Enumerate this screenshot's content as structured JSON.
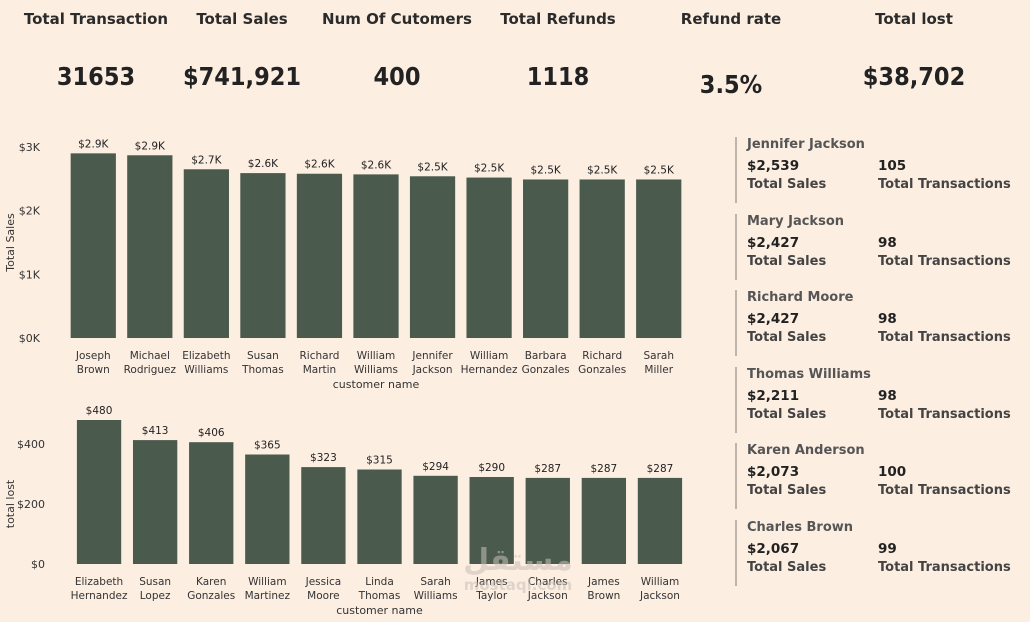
{
  "kpis": [
    {
      "label": "Total Transaction",
      "value": "31653"
    },
    {
      "label": "Total Sales",
      "value": "$741,921"
    },
    {
      "label": "Num Of Cutomers",
      "value": "400"
    },
    {
      "label": "Total Refunds",
      "value": "1118"
    },
    {
      "label": "Refund rate",
      "value": "3.5%"
    },
    {
      "label": "Total lost",
      "value": "$38,702"
    }
  ],
  "cards": [
    {
      "name": "Jennifer Jackson",
      "sales": "$2,539",
      "transactions": "105",
      "sales_label": "Total Sales",
      "tx_label": "Total Transactions"
    },
    {
      "name": "Mary Jackson",
      "sales": "$2,427",
      "transactions": "98",
      "sales_label": "Total Sales",
      "tx_label": "Total Transactions"
    },
    {
      "name": "Richard Moore",
      "sales": "$2,427",
      "transactions": "98",
      "sales_label": "Total Sales",
      "tx_label": "Total Transactions"
    },
    {
      "name": "Thomas Williams",
      "sales": "$2,211",
      "transactions": "98",
      "sales_label": "Total Sales",
      "tx_label": "Total Transactions"
    },
    {
      "name": "Karen Anderson",
      "sales": "$2,073",
      "transactions": "100",
      "sales_label": "Total Sales",
      "tx_label": "Total Transactions"
    },
    {
      "name": "Charles Brown",
      "sales": "$2,067",
      "transactions": "99",
      "sales_label": "Total Sales",
      "tx_label": "Total Transactions"
    }
  ],
  "watermark": {
    "arabic": "مستقل",
    "latin": "mostaqi.com"
  },
  "colors": {
    "bar": "#4a5a4c",
    "background": "#fdeee2"
  },
  "chart_data": [
    {
      "type": "bar",
      "categories": [
        "Joseph Brown",
        "Michael Rodriguez",
        "Elizabeth Williams",
        "Susan Thomas",
        "Richard Martin",
        "William Williams",
        "Jennifer Jackson",
        "William Hernandez",
        "Barbara Gonzales",
        "Richard Gonzales",
        "Sarah Miller"
      ],
      "values": [
        2900,
        2870,
        2650,
        2590,
        2580,
        2570,
        2540,
        2520,
        2490,
        2490,
        2490
      ],
      "data_labels": [
        "$2.9K",
        "$2.9K",
        "$2.7K",
        "$2.6K",
        "$2.6K",
        "$2.6K",
        "$2.5K",
        "$2.5K",
        "$2.5K",
        "$2.5K",
        "$2.5K"
      ],
      "yticks": [
        0,
        1000,
        2000,
        3000
      ],
      "ytick_labels": [
        "$0K",
        "$1K",
        "$2K",
        "$3K"
      ],
      "ylim": [
        0,
        3000
      ],
      "xlabel": "customer name",
      "ylabel": "Total Sales",
      "grid": false
    },
    {
      "type": "bar",
      "categories": [
        "Elizabeth Hernandez",
        "Susan Lopez",
        "Karen Gonzales",
        "William Martinez",
        "Jessica Moore",
        "Linda Thomas",
        "Sarah Williams",
        "James Taylor",
        "Charles Jackson",
        "James Brown",
        "William Jackson"
      ],
      "values": [
        480,
        413,
        406,
        365,
        323,
        315,
        294,
        290,
        287,
        287,
        287
      ],
      "data_labels": [
        "$480",
        "$413",
        "$406",
        "$365",
        "$323",
        "$315",
        "$294",
        "$290",
        "$287",
        "$287",
        "$287"
      ],
      "yticks": [
        0,
        200,
        400
      ],
      "ytick_labels": [
        "$0",
        "$200",
        "$400"
      ],
      "ylim": [
        0,
        400
      ],
      "xlabel": "customer name",
      "ylabel": "total lost",
      "grid": false
    }
  ]
}
